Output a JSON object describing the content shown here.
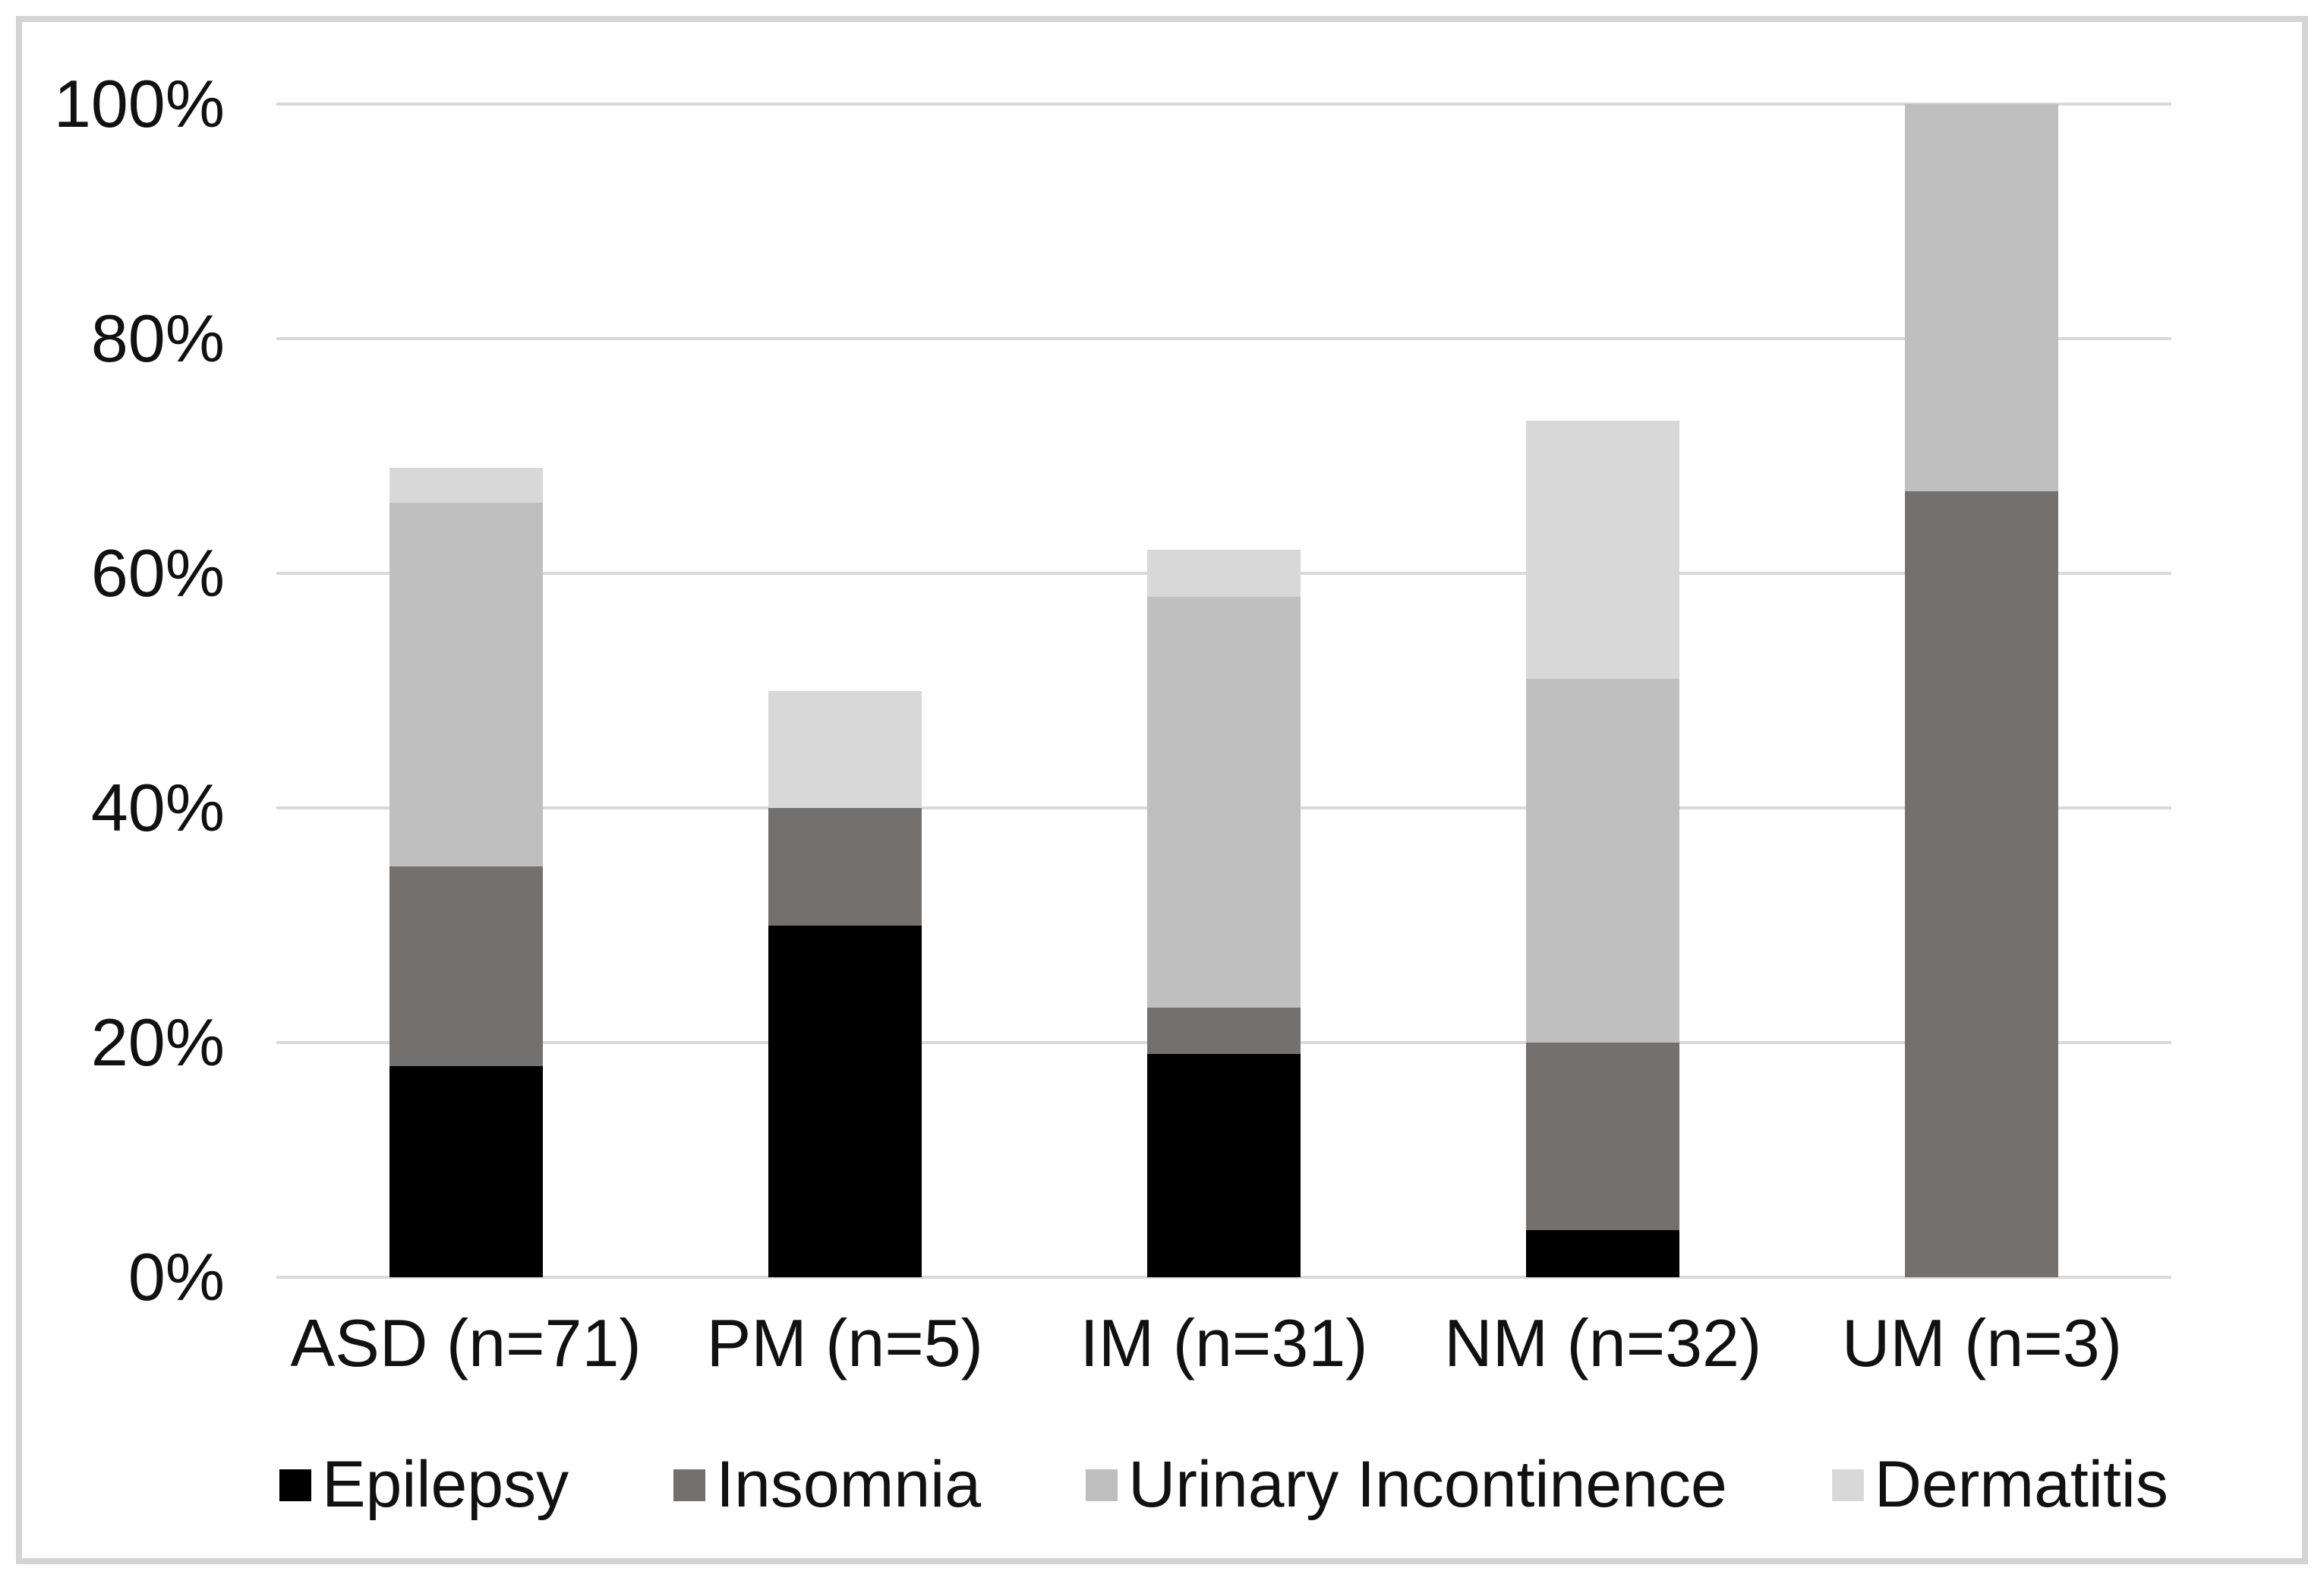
{
  "chart_data": {
    "type": "bar",
    "subtype": "stacked-percentage-bar",
    "title": "",
    "xlabel": "",
    "ylabel": "",
    "categories": [
      "ASD (n=71)",
      "PM (n=5)",
      "IM (n=31)",
      "NM (n=32)",
      "UM (n=3)"
    ],
    "series": [
      {
        "name": "Epilepsy",
        "color": "#000000",
        "values": [
          18,
          30,
          19,
          4,
          0
        ]
      },
      {
        "name": "Insomnia",
        "color": "#737070",
        "values": [
          17,
          10,
          4,
          16,
          67
        ]
      },
      {
        "name": "Urinary Incontinence",
        "color": "#BFBFBF",
        "values": [
          31,
          0,
          35,
          31,
          33
        ]
      },
      {
        "name": "Dermatitis",
        "color": "#D8D8D8",
        "values": [
          3,
          10,
          4,
          22,
          0
        ]
      }
    ],
    "stack_totals_percent": [
      69,
      50,
      62,
      73,
      100
    ],
    "yaxis": {
      "range": [
        0,
        100
      ],
      "grid": true,
      "ticks": [
        {
          "label": "0%",
          "value": 0
        },
        {
          "label": "20%",
          "value": 20
        },
        {
          "label": "40%",
          "value": 40
        },
        {
          "label": "60%",
          "value": 60
        },
        {
          "label": "80%",
          "value": 80
        },
        {
          "label": "100%",
          "value": 100
        }
      ]
    },
    "legend_position": "bottom"
  },
  "style": {
    "grid_color": "#D9D9D9",
    "frame_color": "#D4D4D4",
    "background": "#FFFFFF",
    "text_color": "#111111"
  }
}
